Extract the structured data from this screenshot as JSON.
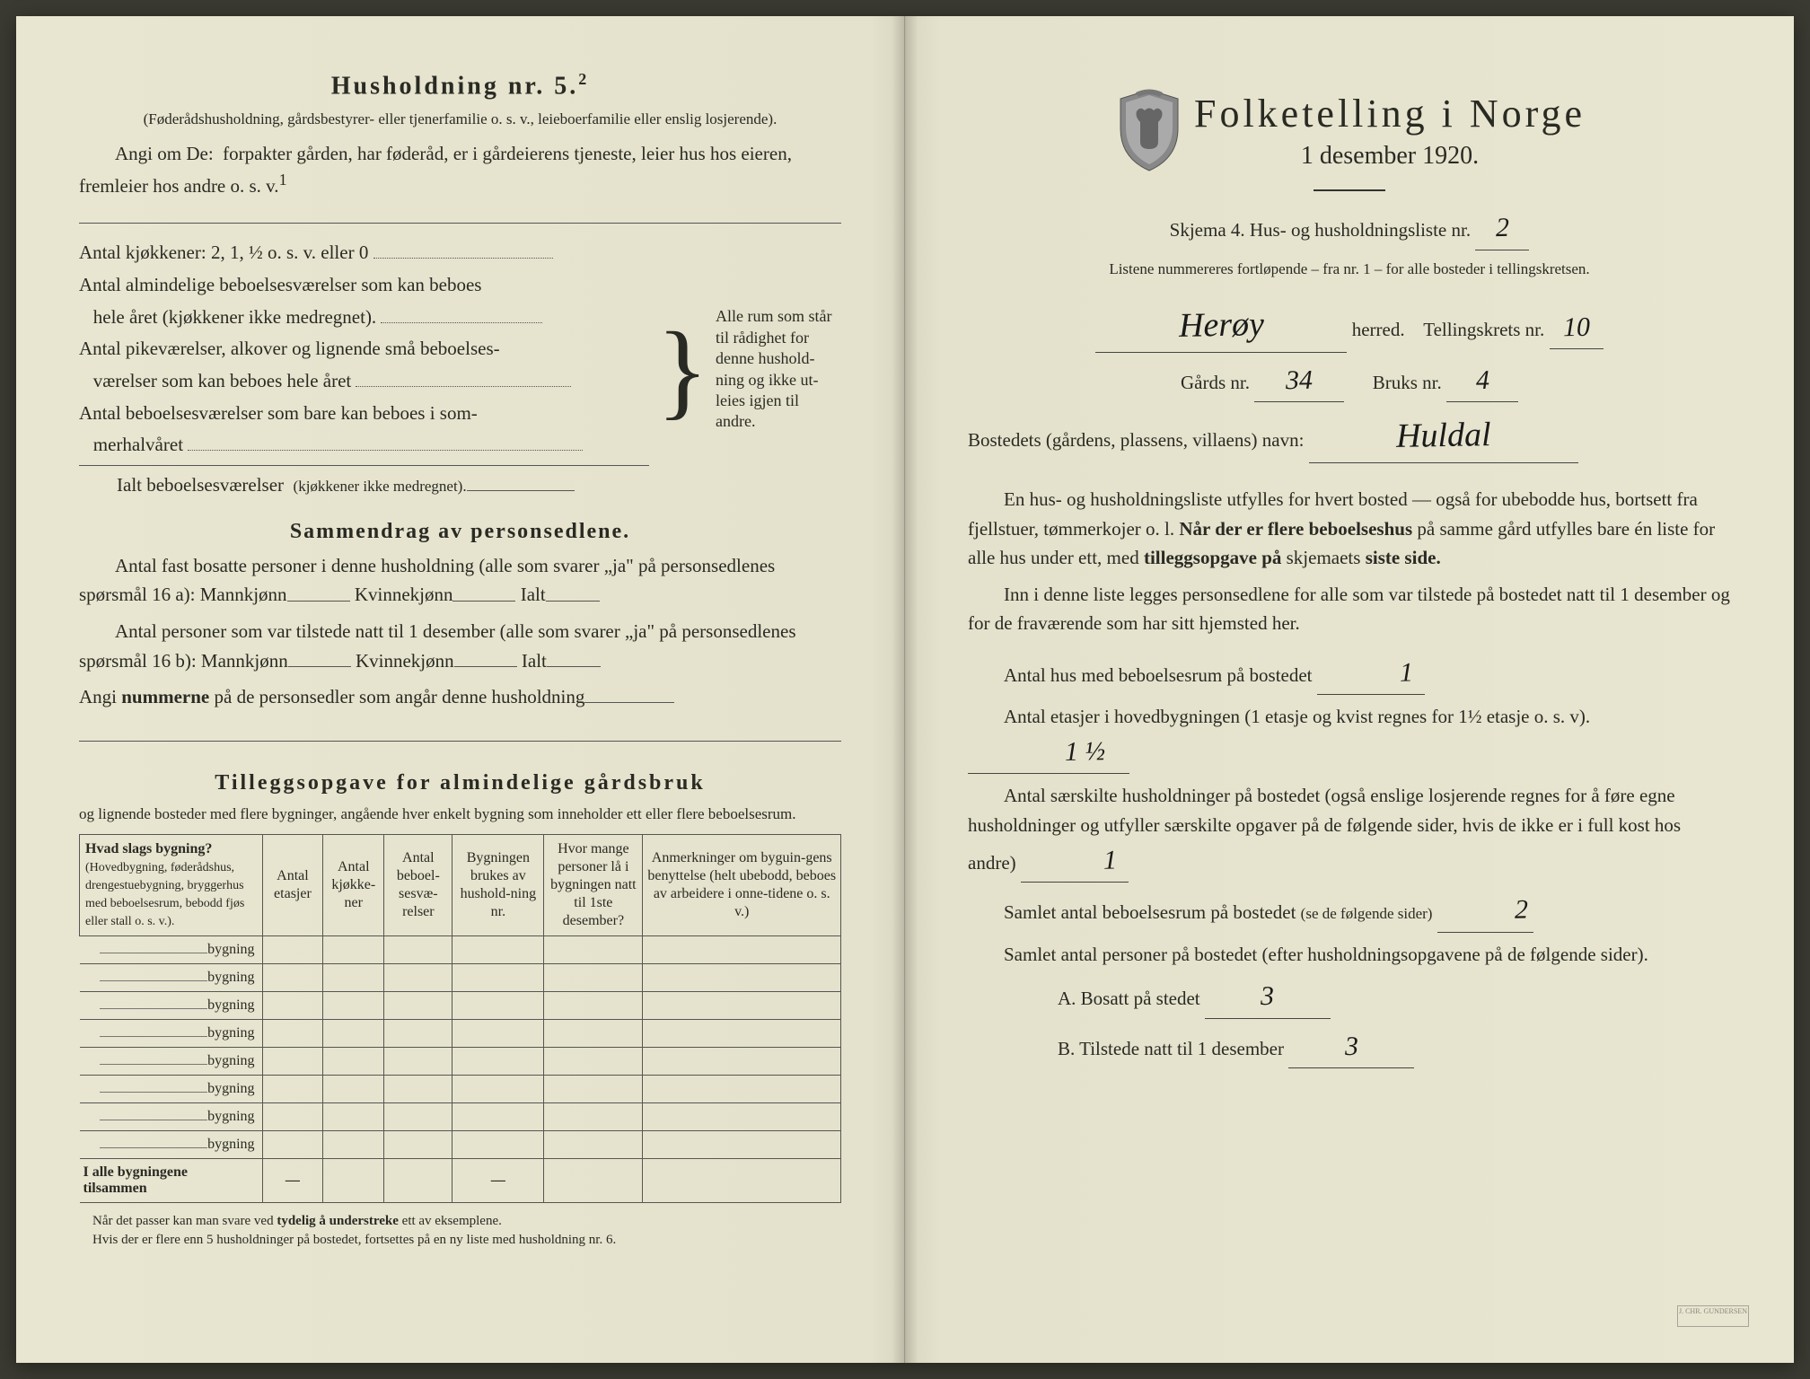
{
  "left": {
    "heading": "Husholdning nr. 5.",
    "heading_sup": "2",
    "sub1": "(Føderådshusholdning, gårdsbestyrer- eller tjenerfamilie o. s. v., leieboerfamilie eller enslig losjerende).",
    "sub2_prefix": "Angi om De:",
    "sub2": "forpakter gården, har føderåd, er i gårdeierens tjeneste, leier hus hos eieren, fremleier hos andre o. s. v.",
    "sub2_sup": "1",
    "rooms": {
      "l1": "Antal kjøkkener: 2, 1, ½ o. s. v. eller 0",
      "l2a": "Antal almindelige beboelsesværelser som kan beboes",
      "l2b": "hele året (kjøkkener ikke medregnet).",
      "l3a": "Antal pikeværelser, alkover og lignende små beboelses-",
      "l3b": "værelser som kan beboes hele året",
      "l4a": "Antal beboelsesværelser som bare kan beboes i som-",
      "l4b": "merhalvåret",
      "total": "Ialt beboelsesværelser",
      "total_note": "(kjøkkener ikke medregnet).",
      "brace_text": "Alle rum som står til rådighet for denne hushold-ning og ikke ut-leies igjen til andre."
    },
    "summary": {
      "heading": "Sammendrag av personsedlene.",
      "l1": "Antal fast bosatte personer i denne husholdning (alle som svarer „ja\" på personsedlenes spørsmål 16 a): Mannkjønn",
      "kv": "Kvinnekjønn",
      "ialt": "Ialt",
      "l2": "Antal personer som var tilstede natt til 1 desember (alle som svarer „ja\" på personsedlenes spørsmål 16 b): Mannkjønn",
      "l3_prefix": "Angi",
      "l3_bold": "nummerne",
      "l3_rest": "på de personsedler som angår denne husholdning"
    },
    "tillegg": {
      "heading": "Tilleggsopgave for almindelige gårdsbruk",
      "sub": "og lignende bosteder med flere bygninger, angående hver enkelt bygning som inneholder ett eller flere beboelsesrum.",
      "col1_a": "Hvad slags bygning?",
      "col1_b": "(Hovedbygning, føderådshus, drengestuebygning, bryggerhus med beboelsesrum, bebodd fjøs eller stall o. s. v.).",
      "col2": "Antal etasjer",
      "col3": "Antal kjøkke-ner",
      "col4": "Antal beboel-sesvæ-relser",
      "col5": "Bygningen brukes av hushold-ning nr.",
      "col6": "Hvor mange personer lå i bygningen natt til 1ste desember?",
      "col7": "Anmerkninger om byguin-gens benyttelse (helt ubebodd, beboes av arbeidere i onne-tidene o. s. v.)",
      "row_suffix": "bygning",
      "total_row": "I alle bygningene tilsammen",
      "dash": "—"
    },
    "footnote1": "Når det passer kan man svare ved",
    "footnote1_bold": "tydelig å understreke",
    "footnote1_rest": "ett av eksemplene.",
    "footnote2": "Hvis der er flere enn 5 husholdninger på bostedet, fortsettes på en ny liste med husholdning nr. 6."
  },
  "right": {
    "title": "Folketelling i Norge",
    "date": "1 desember 1920.",
    "skjema": "Skjema 4.  Hus- og husholdningsliste nr.",
    "skjema_hw": "2",
    "listene": "Listene nummereres fortløpende – fra nr. 1 – for alle bosteder i tellingskretsen.",
    "herred_hw": "Herøy",
    "herred_label": "herred.",
    "tellingskrets": "Tellingskrets nr.",
    "tellingskrets_hw": "10",
    "gards": "Gårds nr.",
    "gards_hw": "34",
    "bruks": "Bruks nr.",
    "bruks_hw": "4",
    "bosted": "Bostedets (gårdens, plassens, villaens) navn:",
    "bosted_hw": "Huldal",
    "p1": "En hus- og husholdningsliste utfylles for hvert bosted — også for ubebodde hus, bortsett fra fjellstuer, tømmerkojer o. l.",
    "p1_bold1": "Når der er flere beboelseshus",
    "p1_mid": "på samme gård utfylles bare én liste for alle hus under ett, med",
    "p1_bold2": "tilleggsopgave på",
    "p1_mid2": "skjemaets",
    "p1_bold3": "siste side.",
    "p2": "Inn i denne liste legges personsedlene for alle som var tilstede på bostedet natt til 1 desember og for de fraværende som har sitt hjemsted her.",
    "q1": "Antal hus med beboelsesrum på bostedet",
    "q1_hw": "1",
    "q2": "Antal etasjer i hovedbygningen (1 etasje og kvist regnes for 1½ etasje o. s. v).",
    "q2_hw": "1 ½",
    "q3": "Antal særskilte husholdninger på bostedet (også enslige losjerende regnes for å føre egne husholdninger og utfyller særskilte opgaver på de følgende sider, hvis de ikke er i full kost hos andre)",
    "q3_hw": "1",
    "q4": "Samlet antal beboelsesrum på bostedet",
    "q4_note": "(se de følgende sider)",
    "q4_hw": "2",
    "q5": "Samlet antal personer på bostedet (efter husholdningsopgavene på de følgende sider).",
    "qa": "A.  Bosatt på stedet",
    "qa_hw": "3",
    "qb": "B.  Tilstede natt til 1 desember",
    "qb_hw": "3"
  },
  "colors": {
    "paper": "#e6e4ce",
    "ink": "#2a2a24",
    "handwriting": "#1a1a1a"
  }
}
